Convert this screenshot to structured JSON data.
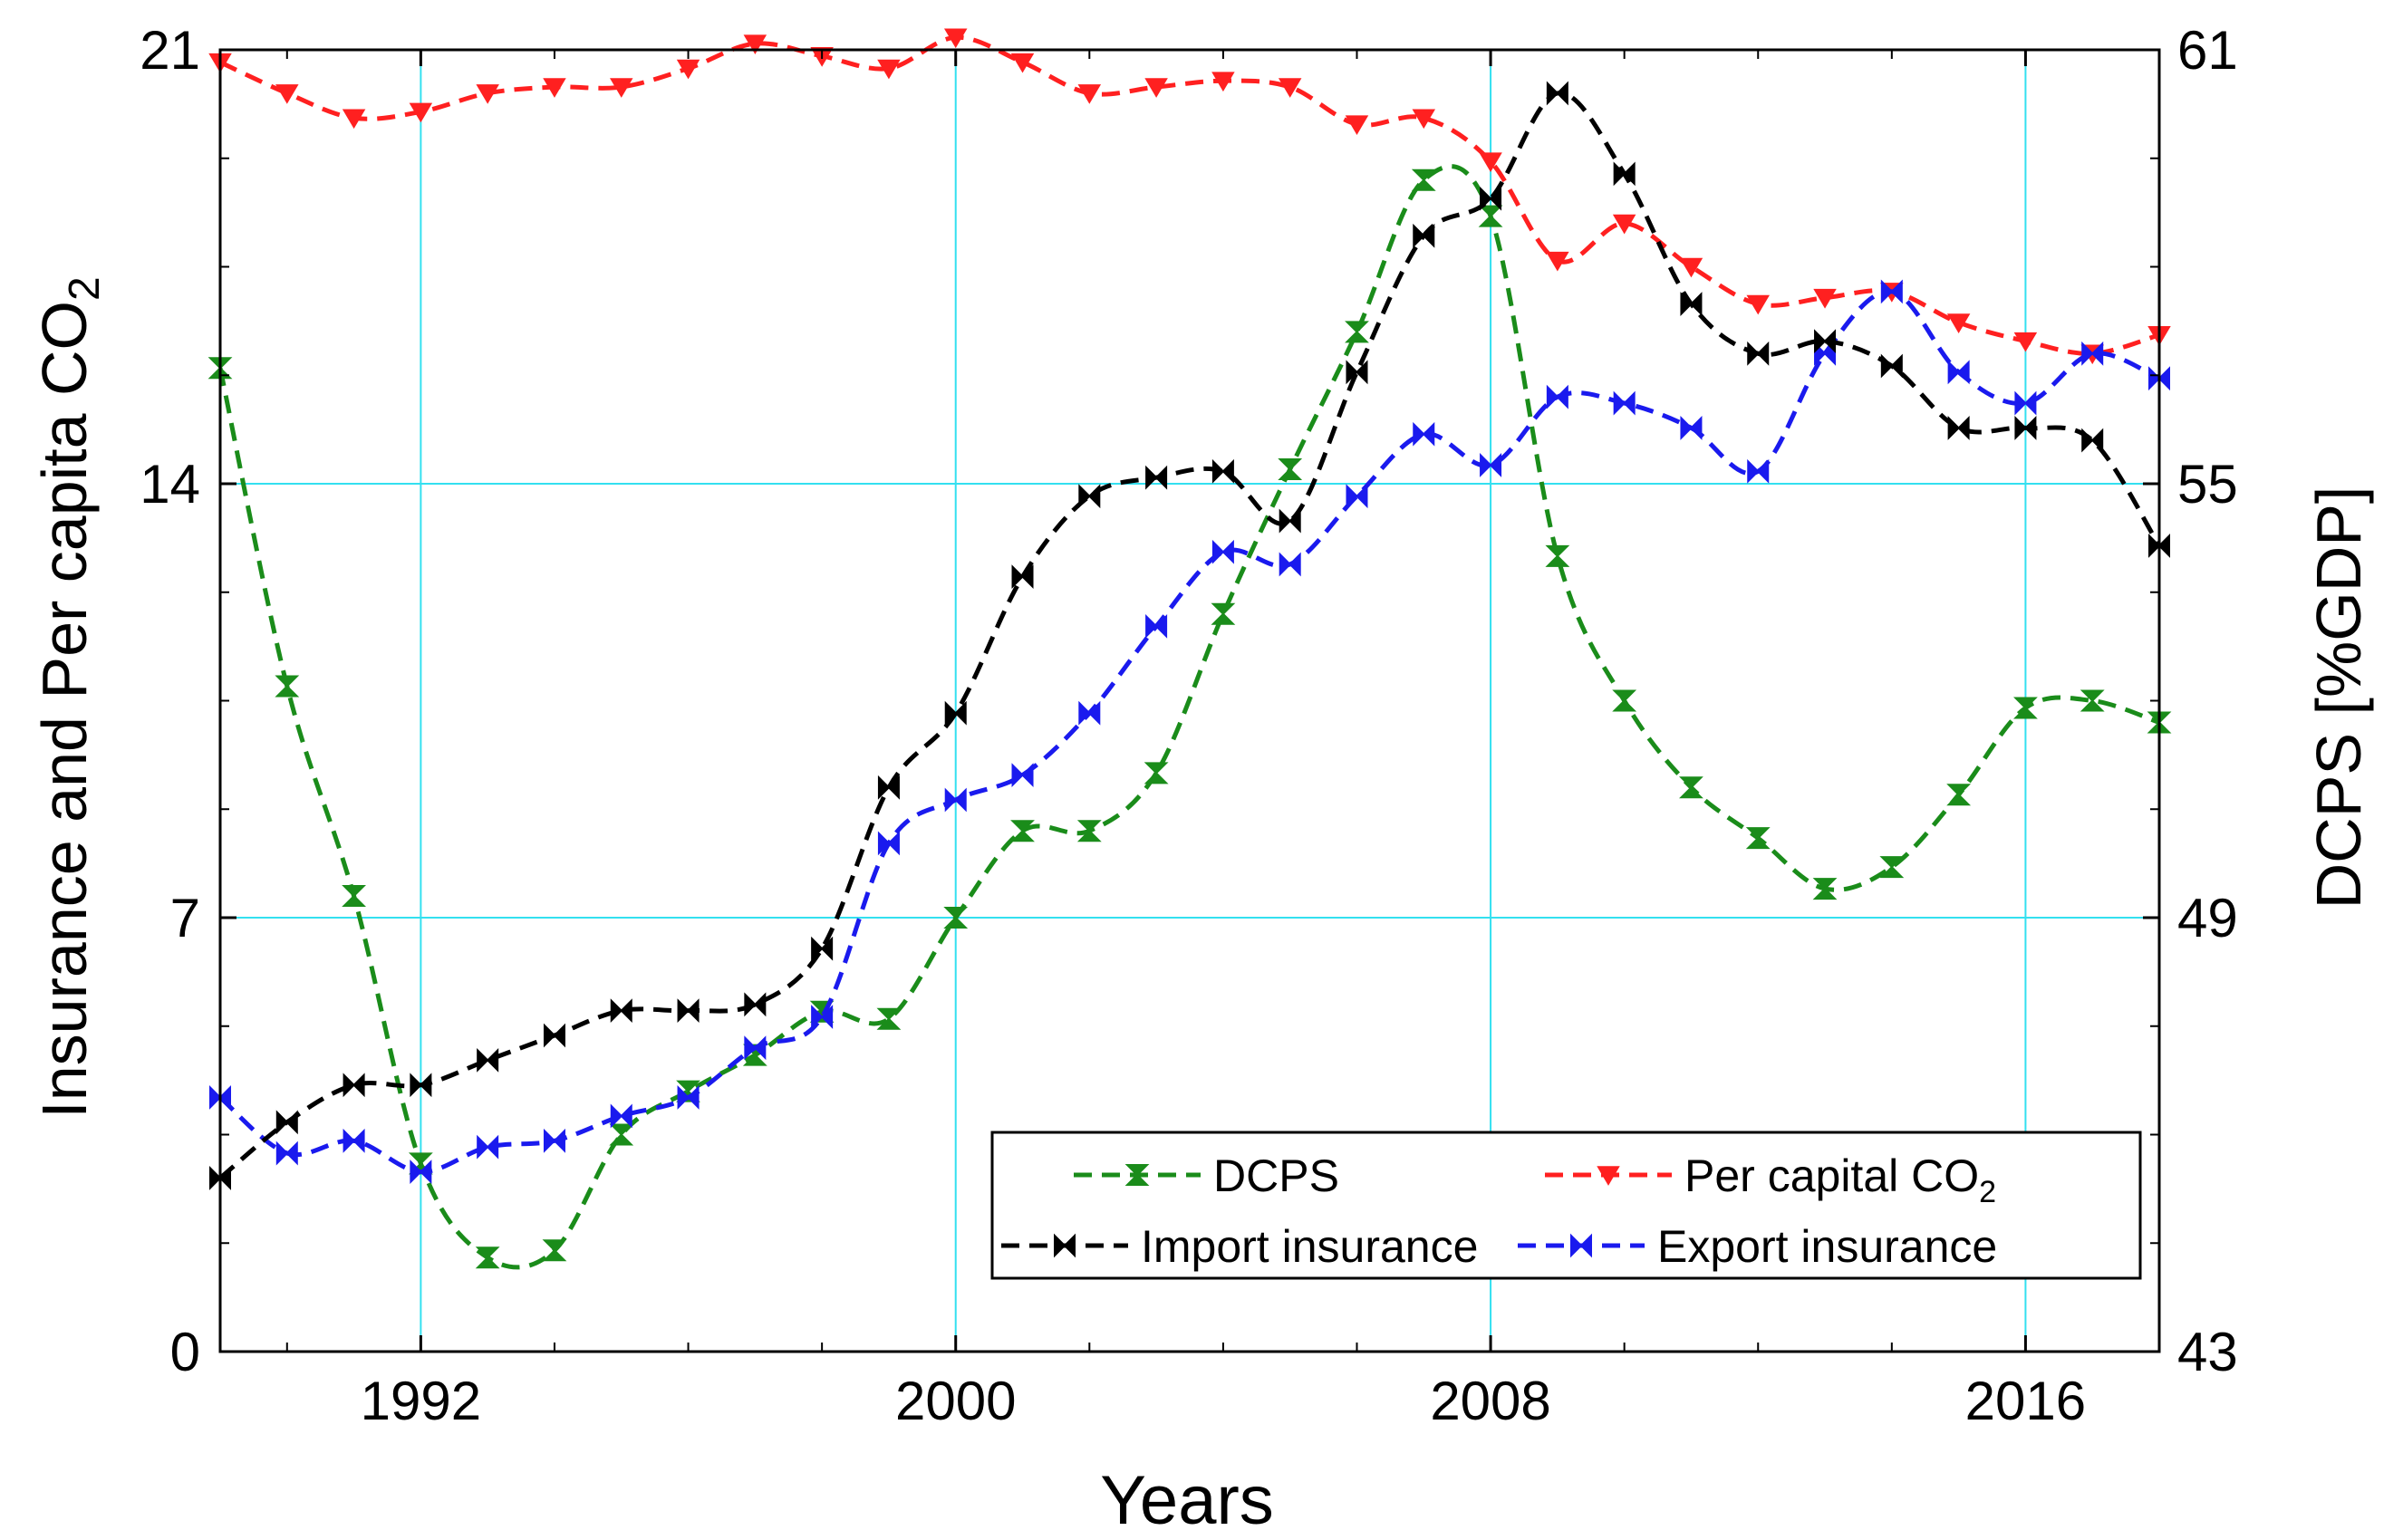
{
  "chart_data": {
    "type": "line",
    "title": "",
    "xlabel": "Years",
    "ylabel_left": "Insurance and Per capita CO",
    "ylabel_left_sub": "2",
    "ylabel_right": "DCPS [%GDP]",
    "xlim": [
      1989,
      2018
    ],
    "ylim_left": [
      0,
      21
    ],
    "ylim_right": [
      43,
      61
    ],
    "x_ticks": [
      1992,
      2000,
      2008,
      2016
    ],
    "x_tick_labels": [
      "1992",
      "2000",
      "2008",
      "2016"
    ],
    "y_left_ticks": [
      0,
      7,
      14,
      21
    ],
    "y_left_tick_labels": [
      "0",
      "7",
      "14",
      "21"
    ],
    "y_right_ticks": [
      43,
      49,
      55,
      61
    ],
    "y_right_tick_labels": [
      "43",
      "49",
      "55",
      "61"
    ],
    "grid": true,
    "legend_position": "bottom-right",
    "series": [
      {
        "name": "DCPS",
        "legend_label": "DCPS",
        "legend_sub": "",
        "axis": "right",
        "color": "#1a8c1a",
        "marker": "hourglass",
        "x": [
          1989,
          1990,
          1991,
          1992,
          1993,
          1994,
          1995,
          1996,
          1997,
          1998,
          1999,
          2000,
          2001,
          2002,
          2003,
          2004,
          2005,
          2006,
          2007,
          2008,
          2009,
          2010,
          2011,
          2012,
          2013,
          2014,
          2015,
          2016,
          2017,
          2018
        ],
        "y": [
          56.6,
          52.2,
          49.3,
          45.6,
          44.3,
          44.4,
          46.0,
          46.6,
          47.1,
          47.7,
          47.6,
          49.0,
          50.2,
          50.2,
          51.0,
          53.2,
          55.2,
          57.1,
          59.2,
          58.7,
          54.0,
          52.0,
          50.8,
          50.1,
          49.4,
          49.7,
          50.7,
          51.9,
          52.0,
          51.7
        ]
      },
      {
        "name": "Per capital CO2",
        "legend_label": "Per capital CO",
        "legend_sub": "2",
        "axis": "left",
        "color": "#ff2020",
        "marker": "triangle-down",
        "x": [
          1989,
          1990,
          1991,
          1992,
          1993,
          1994,
          1995,
          1996,
          1997,
          1998,
          1999,
          2000,
          2001,
          2002,
          2003,
          2004,
          2005,
          2006,
          2007,
          2008,
          2009,
          2010,
          2011,
          2012,
          2013,
          2014,
          2015,
          2016,
          2017,
          2018
        ],
        "y": [
          20.8,
          20.3,
          19.9,
          20.0,
          20.3,
          20.4,
          20.4,
          20.7,
          21.1,
          20.9,
          20.7,
          21.2,
          20.8,
          20.3,
          20.4,
          20.5,
          20.4,
          19.8,
          19.9,
          19.2,
          17.6,
          18.2,
          17.5,
          16.9,
          17.0,
          17.1,
          16.6,
          16.3,
          16.1,
          16.4
        ]
      },
      {
        "name": "Import insurance",
        "legend_label": "Import insurance",
        "legend_sub": "",
        "axis": "left",
        "color": "#000000",
        "marker": "bowtie",
        "x": [
          1989,
          1990,
          1991,
          1992,
          1993,
          1994,
          1995,
          1996,
          1997,
          1998,
          1999,
          2000,
          2001,
          2002,
          2003,
          2004,
          2005,
          2006,
          2007,
          2008,
          2009,
          2010,
          2011,
          2012,
          2013,
          2014,
          2015,
          2016,
          2017,
          2018
        ],
        "y": [
          2.8,
          3.7,
          4.3,
          4.3,
          4.7,
          5.1,
          5.5,
          5.5,
          5.6,
          6.5,
          9.1,
          10.3,
          12.5,
          13.8,
          14.1,
          14.2,
          13.4,
          15.8,
          18.0,
          18.6,
          20.3,
          19.0,
          16.9,
          16.1,
          16.3,
          15.9,
          14.9,
          14.9,
          14.7,
          13.0
        ]
      },
      {
        "name": "Export insurance",
        "legend_label": "Export insurance",
        "legend_sub": "",
        "axis": "left",
        "color": "#1a1aee",
        "marker": "bowtie",
        "x": [
          1989,
          1990,
          1991,
          1992,
          1993,
          1994,
          1995,
          1996,
          1997,
          1998,
          1999,
          2000,
          2001,
          2002,
          2003,
          2004,
          2005,
          2006,
          2007,
          2008,
          2009,
          2010,
          2011,
          2012,
          2013,
          2014,
          2015,
          2016,
          2017,
          2018
        ],
        "y": [
          4.1,
          3.2,
          3.4,
          2.9,
          3.3,
          3.4,
          3.8,
          4.1,
          4.9,
          5.4,
          8.2,
          8.9,
          9.3,
          10.3,
          11.7,
          12.9,
          12.7,
          13.8,
          14.8,
          14.3,
          15.4,
          15.3,
          14.9,
          14.2,
          16.1,
          17.1,
          15.8,
          15.3,
          16.1,
          15.7
        ]
      }
    ]
  }
}
